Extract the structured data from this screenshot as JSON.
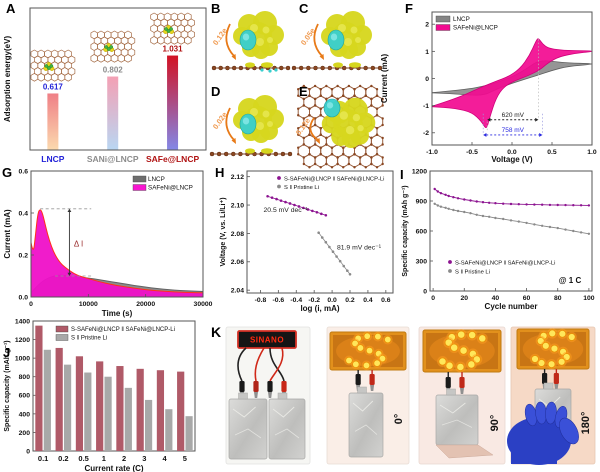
{
  "panel_labels": {
    "A": "A",
    "B": "B",
    "C": "C",
    "D": "D",
    "E": "E",
    "F": "F",
    "G": "G",
    "H": "H",
    "I": "I",
    "J": "J",
    "K": "K"
  },
  "structures": {
    "B": {
      "label": "B",
      "transfer": "0.12e",
      "view": "side"
    },
    "C": {
      "label": "C",
      "transfer": "0.05e",
      "view": "side"
    },
    "D": {
      "label": "D",
      "transfer": "0.02e",
      "view": "side"
    },
    "E": {
      "label": "E",
      "transfer": "0.12e",
      "view": "top"
    }
  },
  "panel_K": {
    "sign_text": "SINANO",
    "bend_labels": [
      "0°",
      "90°",
      "180°"
    ]
  },
  "colors": {
    "magenta": "#f20a90",
    "bright_magenta": "#f716d0",
    "purple": "#8c1390",
    "gray": "#8a8a8a",
    "bar_red": "#b05a68",
    "blue_label": "#2222d8",
    "dark_red_label": "#b01212",
    "orange_arrow": "#e87a18"
  },
  "chart_data": [
    {
      "id": "A",
      "type": "bar",
      "ylabel": "Adsorption energy(eV)",
      "categories": [
        "LNCP",
        "SANi@LNCP",
        "SAFe@LNCP"
      ],
      "values": [
        0.617,
        0.802,
        1.031
      ],
      "value_labels": [
        "0.617",
        "0.802",
        "1.031"
      ],
      "value_colors": [
        "#2222d8",
        "#8c8c8c",
        "#b01212"
      ],
      "category_colors": [
        "#2222d8",
        "#8c8c8c",
        "#b01212"
      ],
      "bar_gradients": [
        [
          "#ef7f86",
          "#fbd9ae"
        ],
        [
          "#f4a0b4",
          "#b9d6f2"
        ],
        [
          "#d21223",
          "#8487e6"
        ]
      ],
      "ylim": [
        0,
        1.55
      ]
    },
    {
      "id": "F",
      "type": "line",
      "xlabel": "Voltage (V)",
      "ylabel": "Current (mA)",
      "xlim": [
        -1,
        1
      ],
      "ylim": [
        -2.45,
        2.45
      ],
      "xticks": [
        -1,
        -0.5,
        0,
        0.5,
        1
      ],
      "xtick_labels": [
        "-1.0",
        "-0.5",
        "0.0",
        "0.5",
        "1.0"
      ],
      "yticks": [
        -2,
        -1,
        0,
        1,
        2
      ],
      "ytick_labels": [
        "-2",
        "-1",
        "0",
        "1",
        "2"
      ],
      "legend": [
        {
          "name": "LNCP",
          "color": "#858585"
        },
        {
          "name": "SAFeNi@LNCP",
          "color": "#f20a90"
        }
      ],
      "series": [
        {
          "name": "LNCP",
          "fill": "#8a8a8a",
          "stroke": "#5f5f5f",
          "loop": [
            [
              -1,
              -0.52
            ],
            [
              -0.6,
              -0.42
            ],
            [
              -0.3,
              -0.25
            ],
            [
              -0.1,
              -0.05
            ],
            [
              0.05,
              0.12
            ],
            [
              0.2,
              0.4
            ],
            [
              0.3,
              0.6
            ],
            [
              0.4,
              0.66
            ],
            [
              0.55,
              0.62
            ],
            [
              0.7,
              0.57
            ],
            [
              1,
              0.55
            ],
            [
              1,
              0.52
            ],
            [
              0.7,
              0.45
            ],
            [
              0.5,
              0.3
            ],
            [
              0.3,
              0.1
            ],
            [
              0.1,
              -0.08
            ],
            [
              -0.1,
              -0.28
            ],
            [
              -0.25,
              -0.48
            ],
            [
              -0.35,
              -0.6
            ],
            [
              -0.5,
              -0.62
            ],
            [
              -0.7,
              -0.57
            ],
            [
              -1,
              -0.53
            ]
          ]
        },
        {
          "name": "SAFeNi@LNCP",
          "fill": "#f20a90",
          "stroke": "#d1007a",
          "loop": [
            [
              -1,
              -1.02
            ],
            [
              -0.7,
              -0.74
            ],
            [
              -0.4,
              -0.34
            ],
            [
              -0.2,
              -0.1
            ],
            [
              -0.05,
              0.06
            ],
            [
              0.1,
              0.36
            ],
            [
              0.22,
              0.85
            ],
            [
              0.3,
              1.38
            ],
            [
              0.33,
              1.5
            ],
            [
              0.38,
              1.28
            ],
            [
              0.45,
              1.12
            ],
            [
              0.6,
              1.05
            ],
            [
              0.8,
              1.02
            ],
            [
              1,
              1.02
            ],
            [
              1,
              0.99
            ],
            [
              0.8,
              0.93
            ],
            [
              0.6,
              0.82
            ],
            [
              0.45,
              0.58
            ],
            [
              0.35,
              0.32
            ],
            [
              0.2,
              0.1
            ],
            [
              0.05,
              -0.06
            ],
            [
              -0.1,
              -0.3
            ],
            [
              -0.2,
              -0.72
            ],
            [
              -0.28,
              -1.45
            ],
            [
              -0.32,
              -1.9
            ],
            [
              -0.38,
              -1.58
            ],
            [
              -0.5,
              -1.25
            ],
            [
              -0.7,
              -1.1
            ],
            [
              -1,
              -1.04
            ]
          ]
        }
      ],
      "annotations": [
        {
          "text": "620 mV",
          "color": "#222222",
          "x1": -0.31,
          "x2": 0.33,
          "y": -1.52
        },
        {
          "text": "758 mV",
          "color": "#2a2ae0",
          "x1": -0.36,
          "x2": 0.38,
          "y": -2.08
        }
      ]
    },
    {
      "id": "G",
      "type": "area",
      "xlabel": "Time (s)",
      "ylabel": "Current (mA)",
      "xlim": [
        0,
        30000
      ],
      "ylim": [
        0,
        0.6
      ],
      "xticks": [
        0,
        10000,
        20000,
        30000
      ],
      "xtick_labels": [
        "0",
        "10000",
        "20000",
        "30000"
      ],
      "yticks": [
        0,
        0.2,
        0.4,
        0.6
      ],
      "ytick_labels": [
        "0.0",
        "0.2",
        "0.4",
        "0.6"
      ],
      "legend": [
        {
          "name": "LNCP",
          "color": "#6e6e6e"
        },
        {
          "name": "SAFeNi@LNCP",
          "color": "#f716d0"
        }
      ],
      "series": [
        {
          "name": "LNCP",
          "fill": "#8c8c8c",
          "stroke": "#636363",
          "points": [
            [
              0,
              0.02
            ],
            [
              1000,
              0.05
            ],
            [
              2000,
              0.075
            ],
            [
              3000,
              0.09
            ],
            [
              4000,
              0.1
            ],
            [
              5000,
              0.105
            ],
            [
              6000,
              0.103
            ],
            [
              7000,
              0.1
            ],
            [
              8000,
              0.097
            ],
            [
              10000,
              0.09
            ],
            [
              12000,
              0.082
            ],
            [
              14000,
              0.073
            ],
            [
              16000,
              0.064
            ],
            [
              18000,
              0.055
            ],
            [
              20000,
              0.047
            ],
            [
              22000,
              0.04
            ],
            [
              24000,
              0.035
            ],
            [
              26000,
              0.031
            ],
            [
              28000,
              0.028
            ],
            [
              30000,
              0.026
            ]
          ]
        },
        {
          "name": "SAFeNi@LNCP",
          "fill": "#ef10c8",
          "stroke": "#ff3318",
          "points": [
            [
              0,
              0.26
            ],
            [
              400,
              0.2
            ],
            [
              800,
              0.3
            ],
            [
              1200,
              0.4
            ],
            [
              1600,
              0.42
            ],
            [
              2000,
              0.4
            ],
            [
              2600,
              0.33
            ],
            [
              3200,
              0.27
            ],
            [
              4000,
              0.21
            ],
            [
              5000,
              0.165
            ],
            [
              6000,
              0.14
            ],
            [
              7000,
              0.12
            ],
            [
              8000,
              0.105
            ],
            [
              9000,
              0.095
            ],
            [
              10000,
              0.088
            ],
            [
              12000,
              0.072
            ],
            [
              14000,
              0.06
            ],
            [
              16000,
              0.05
            ],
            [
              18000,
              0.042
            ],
            [
              20000,
              0.035
            ],
            [
              22000,
              0.03
            ],
            [
              24000,
              0.026
            ],
            [
              26000,
              0.023
            ],
            [
              28000,
              0.021
            ],
            [
              30000,
              0.02
            ]
          ]
        }
      ],
      "delta_label": "Δ I",
      "delta": {
        "top": 0.42,
        "bottom": 0.1,
        "dash_x1_top": 1600,
        "dash_x1_bot": 4200,
        "dash_x2": 10500,
        "arrow_x": 6700,
        "label_x": 8300,
        "label_y": 0.25
      }
    },
    {
      "id": "H",
      "type": "scatter",
      "xlabel": "log (i, mA)",
      "ylabel": "Voltage (V, vs. Li/Li⁺)",
      "xlim": [
        -0.95,
        0.68
      ],
      "ylim": [
        2.038,
        2.124
      ],
      "xticks": [
        -0.8,
        -0.6,
        -0.4,
        -0.2,
        0,
        0.2,
        0.4,
        0.6
      ],
      "xtick_labels": [
        "-0.8",
        "-0.6",
        "-0.4",
        "-0.2",
        "0.0",
        "0.2",
        "0.4",
        "0.6"
      ],
      "yticks": [
        2.04,
        2.06,
        2.08,
        2.1,
        2.12
      ],
      "ytick_labels": [
        "2.04",
        "2.06",
        "2.08",
        "2.10",
        "2.12"
      ],
      "legend": [
        {
          "name": "S-SAFeNi@LNCP ‖ SAFeNi@LNCP-Li",
          "color": "#8c1390"
        },
        {
          "name": "S ‖ Pristine Li",
          "color": "#8a8a8a"
        }
      ],
      "series": [
        {
          "name": "S-SAFeNi@LNCP ‖ SAFeNi@LNCP-Li",
          "color": "#8c1390",
          "points": [
            [
              -0.72,
              2.1062
            ],
            [
              -0.67,
              2.1052
            ],
            [
              -0.62,
              2.1042
            ],
            [
              -0.57,
              2.1031
            ],
            [
              -0.52,
              2.1021
            ],
            [
              -0.47,
              2.1011
            ],
            [
              -0.42,
              2.1
            ],
            [
              -0.37,
              2.099
            ],
            [
              -0.32,
              2.098
            ],
            [
              -0.27,
              2.0969
            ],
            [
              -0.22,
              2.0959
            ],
            [
              -0.17,
              2.0949
            ],
            [
              -0.12,
              2.0938
            ],
            [
              -0.07,
              2.0928
            ]
          ]
        },
        {
          "name": "S ‖ Pristine Li",
          "color": "#8a8a8a",
          "points": [
            [
              -0.15,
              2.0805
            ],
            [
              -0.11,
              2.0771
            ],
            [
              -0.07,
              2.0738
            ],
            [
              -0.03,
              2.0704
            ],
            [
              0.01,
              2.0671
            ],
            [
              0.05,
              2.0637
            ],
            [
              0.09,
              2.0604
            ],
            [
              0.13,
              2.057
            ],
            [
              0.17,
              2.0537
            ],
            [
              0.2,
              2.0512
            ]
          ]
        }
      ],
      "annotations": [
        {
          "text": "20.5 mV dec⁻¹",
          "x": -0.52,
          "y": 2.0952,
          "color": "#222222"
        },
        {
          "text": "81.9 mV dec⁻¹",
          "x": 0.3,
          "y": 2.0685,
          "color": "#222222"
        }
      ]
    },
    {
      "id": "I",
      "type": "scatter-line",
      "xlabel": "Cycle number",
      "ylabel": "Specific capacity (mAh g⁻¹)",
      "xlim": [
        -2,
        102
      ],
      "ylim": [
        0,
        1200
      ],
      "xticks": [
        0,
        20,
        40,
        60,
        80,
        100
      ],
      "xtick_labels": [
        "0",
        "20",
        "40",
        "60",
        "80",
        "100"
      ],
      "yticks": [
        0,
        300,
        600,
        900,
        1200
      ],
      "ytick_labels": [
        "0",
        "300",
        "600",
        "900",
        "1200"
      ],
      "note": "@ 1 C",
      "legend": [
        {
          "name": "S-SAFeNi@LNCP ‖ SAFeNi@LNCP-Li",
          "color": "#8c1390"
        },
        {
          "name": "S ‖ Pristine Li",
          "color": "#8a8a8a"
        }
      ],
      "series": [
        {
          "name": "S-SAFeNi@LNCP ‖ SAFeNi@LNCP-Li",
          "color": "#8c1390",
          "points": [
            [
              1,
              1020
            ],
            [
              3,
              995
            ],
            [
              5,
              978
            ],
            [
              8,
              962
            ],
            [
              10,
              950
            ],
            [
              13,
              938
            ],
            [
              16,
              927
            ],
            [
              20,
              915
            ],
            [
              24,
              905
            ],
            [
              28,
              895
            ],
            [
              32,
              888
            ],
            [
              36,
              882
            ],
            [
              40,
              878
            ],
            [
              45,
              873
            ],
            [
              50,
              870
            ],
            [
              55,
              868
            ],
            [
              60,
              866
            ],
            [
              65,
              864
            ],
            [
              70,
              863
            ],
            [
              75,
              861
            ],
            [
              80,
              860
            ],
            [
              85,
              859
            ],
            [
              90,
              858
            ],
            [
              95,
              857
            ],
            [
              100,
              856
            ]
          ]
        },
        {
          "name": "S ‖ Pristine Li",
          "color": "#8a8a8a",
          "points": [
            [
              1,
              872
            ],
            [
              3,
              855
            ],
            [
              5,
              843
            ],
            [
              8,
              832
            ],
            [
              10,
              822
            ],
            [
              13,
              810
            ],
            [
              16,
              800
            ],
            [
              20,
              790
            ],
            [
              24,
              778
            ],
            [
              28,
              762
            ],
            [
              32,
              750
            ],
            [
              36,
              742
            ],
            [
              40,
              730
            ],
            [
              45,
              720
            ],
            [
              50,
              706
            ],
            [
              55,
              694
            ],
            [
              60,
              681
            ],
            [
              65,
              666
            ],
            [
              70,
              652
            ],
            [
              75,
              640
            ],
            [
              80,
              629
            ],
            [
              85,
              614
            ],
            [
              90,
              600
            ],
            [
              95,
              586
            ],
            [
              100,
              572
            ]
          ]
        }
      ]
    },
    {
      "id": "J",
      "type": "bar-group",
      "xlabel": "Current rate (C)",
      "ylabel": "Specific capacity (mAh g⁻¹)",
      "categories": [
        "0.1",
        "0.2",
        "0.5",
        "1",
        "2",
        "3",
        "4",
        "5"
      ],
      "ylim": [
        0,
        1400
      ],
      "yticks": [
        0,
        200,
        400,
        600,
        800,
        1000,
        1200,
        1400
      ],
      "ytick_labels": [
        "0",
        "200",
        "400",
        "600",
        "800",
        "1000",
        "1200",
        "1400"
      ],
      "series": [
        {
          "name": "S-SAFeNi@LNCP ‖ SAFeNi@LNCP-Li",
          "color": "#b05a68",
          "values": [
            1350,
            1110,
            1020,
            965,
            915,
            885,
            870,
            855
          ]
        },
        {
          "name": "S ‖ Pristine Li",
          "color": "#a8a8a8",
          "values": [
            1090,
            930,
            845,
            800,
            680,
            550,
            450,
            375
          ]
        }
      ]
    }
  ]
}
